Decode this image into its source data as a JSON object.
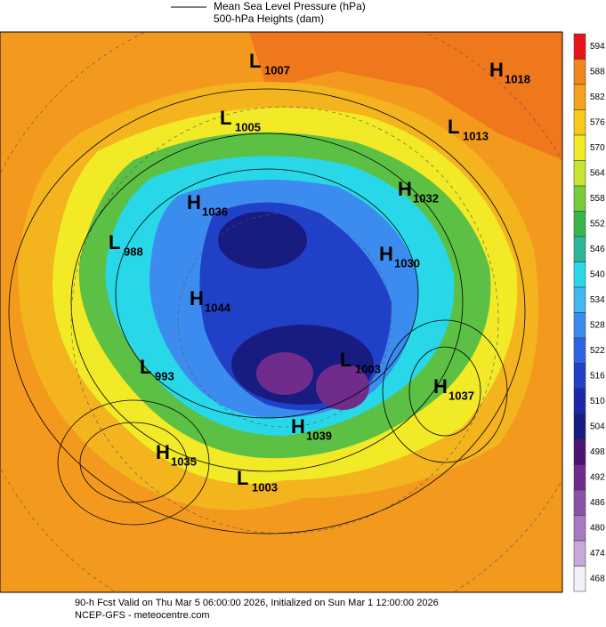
{
  "legend": {
    "line_label": "Mean Sea Level Pressure (hPa)",
    "fill_label": "500-hPa Heights (dam)"
  },
  "colorbar": {
    "levels": [
      594,
      588,
      582,
      576,
      570,
      564,
      558,
      552,
      546,
      540,
      534,
      528,
      522,
      516,
      510,
      504,
      498,
      492,
      486,
      480,
      474,
      468
    ],
    "colors": [
      "#e8141c",
      "#f2861c",
      "#f6a21e",
      "#f8c81c",
      "#f2ea26",
      "#c8e430",
      "#78cc3c",
      "#3cb44c",
      "#2cb898",
      "#28d8e8",
      "#40b8f0",
      "#3c8cf0",
      "#2c64e4",
      "#2040c8",
      "#1c28a8",
      "#181c80",
      "#4c1470",
      "#702c8c",
      "#8c52a8",
      "#a878c0",
      "#c8a8d8",
      "#f4f0f8"
    ]
  },
  "systems": [
    {
      "kind": "L",
      "value": "1007"
    },
    {
      "kind": "H",
      "value": "1018"
    },
    {
      "kind": "L",
      "value": "1005"
    },
    {
      "kind": "L",
      "value": "1013"
    },
    {
      "kind": "H",
      "value": "1032"
    },
    {
      "kind": "H",
      "value": "1036"
    },
    {
      "kind": "L",
      "value": "988"
    },
    {
      "kind": "H",
      "value": "1030"
    },
    {
      "kind": "H",
      "value": "1044"
    },
    {
      "kind": "L",
      "value": "1003"
    },
    {
      "kind": "L",
      "value": "993"
    },
    {
      "kind": "H",
      "value": "1037"
    },
    {
      "kind": "H",
      "value": "1039"
    },
    {
      "kind": "H",
      "value": "1035"
    },
    {
      "kind": "L",
      "value": "1003"
    }
  ],
  "footer": {
    "line1": "90-h Fcst Valid on Thu Mar  5 06:00:00 2026, Initialized on Sun Mar  1 12:00:00 2026",
    "line2": "NCEP-GFS - meteocentre.com"
  }
}
